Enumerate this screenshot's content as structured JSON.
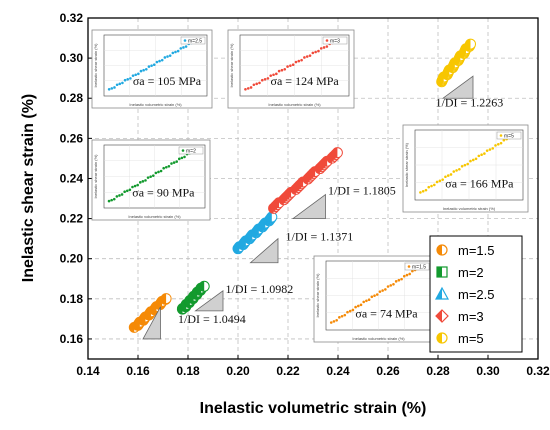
{
  "chart_data": {
    "type": "scatter",
    "xlabel": "Inelastic volumetric strain (%)",
    "ylabel": "Inelastic shear strain (%)",
    "xlim": [
      0.14,
      0.32
    ],
    "ylim": [
      0.15,
      0.32
    ],
    "xticks": [
      "0.14",
      "0.16",
      "0.18",
      "0.20",
      "0.22",
      "0.24",
      "0.26",
      "0.28",
      "0.30",
      "0.32"
    ],
    "yticks": [
      "0.16",
      "0.18",
      "0.20",
      "0.22",
      "0.24",
      "0.26",
      "0.28",
      "0.30",
      "0.32"
    ],
    "grid": true,
    "legend_position": "bottom-right",
    "series": [
      {
        "name": "m=1.5",
        "color": "#F58A07",
        "x_range": [
          0.159,
          0.171
        ],
        "y_range": [
          0.166,
          0.18
        ]
      },
      {
        "name": "m=2",
        "color": "#139A2E",
        "x_range": [
          0.178,
          0.186
        ],
        "y_range": [
          0.175,
          0.186
        ]
      },
      {
        "name": "m=2.5",
        "color": "#21A9E1",
        "x_range": [
          0.2,
          0.214
        ],
        "y_range": [
          0.205,
          0.221
        ]
      },
      {
        "name": "m=3",
        "color": "#F04A3A",
        "x_range": [
          0.214,
          0.24
        ],
        "y_range": [
          0.225,
          0.253
        ]
      },
      {
        "name": "m=5",
        "color": "#F7C600",
        "x_range": [
          0.281,
          0.293
        ],
        "y_range": [
          0.288,
          0.307
        ]
      }
    ],
    "annotations": [
      {
        "text": "1/DI = 1.0494",
        "x": 0.176,
        "y": 0.168
      },
      {
        "text": "1/DI = 1.0982",
        "x": 0.195,
        "y": 0.183
      },
      {
        "text": "1/DI = 1.1371",
        "x": 0.219,
        "y": 0.209
      },
      {
        "text": "1/DI = 1.1805",
        "x": 0.236,
        "y": 0.232
      },
      {
        "text": "1/DI = 1.2263",
        "x": 0.279,
        "y": 0.276
      }
    ],
    "insets": [
      {
        "legend": "m=2.5",
        "stress": "σa = 105 MPa",
        "color": "#21A9E1"
      },
      {
        "legend": "m=3",
        "stress": "σa = 124 MPa",
        "color": "#F04A3A"
      },
      {
        "legend": "m=2",
        "stress": "σa = 90 MPa",
        "color": "#139A2E"
      },
      {
        "legend": "m=5",
        "stress": "σa = 166 MPa",
        "color": "#F7C600"
      },
      {
        "legend": "m=1.5",
        "stress": "σa = 74 MPa",
        "color": "#F58A07"
      }
    ]
  },
  "insets_text": {
    "xlabel": "Inelastic volumetric strain (%)",
    "ylabel": "Inelastic shear strain (%)"
  }
}
